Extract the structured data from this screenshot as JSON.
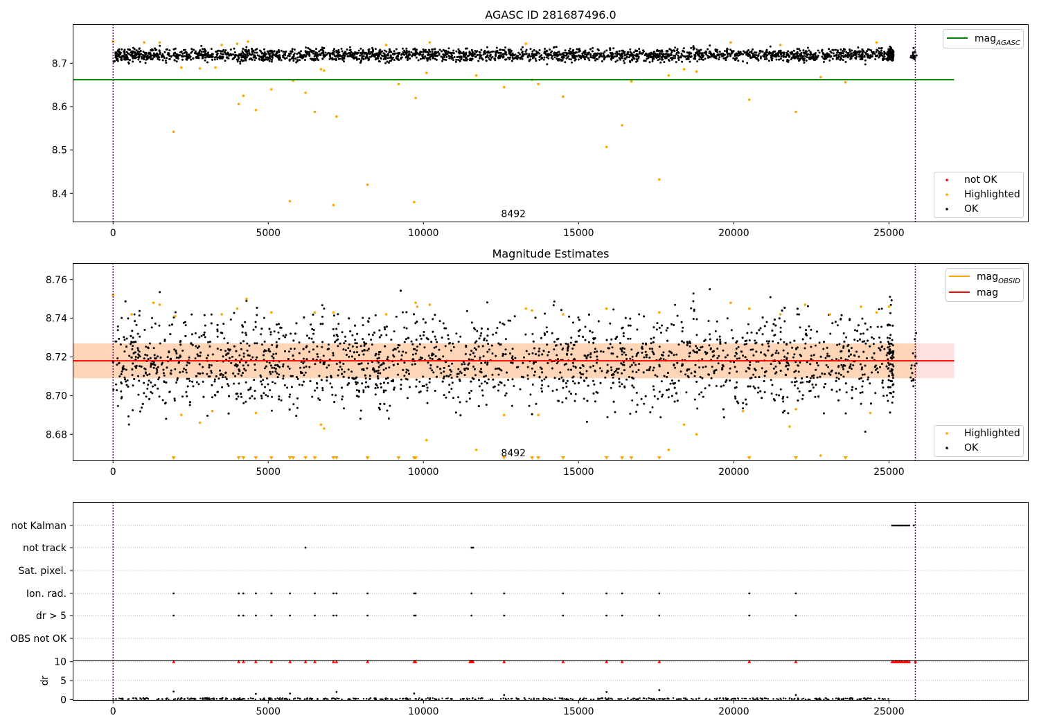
{
  "chart_data": [
    {
      "type": "scatter",
      "title": "AGASC ID 281687496.0",
      "xlabel": "",
      "ylabel": "",
      "xlim": [
        -1300,
        29500
      ],
      "ylim": [
        8.335,
        8.79
      ],
      "x_ticks": [
        0,
        5000,
        10000,
        15000,
        20000,
        25000
      ],
      "y_ticks": [
        8.4,
        8.5,
        8.6,
        8.7
      ],
      "vlines": [
        0,
        25850
      ],
      "hlines": [
        {
          "name": "mag_AGASC",
          "y": 8.662,
          "x_end": 27100,
          "color": "#008000"
        }
      ],
      "annotation": {
        "text": "8492",
        "x": 12900,
        "y": 8.353
      },
      "series": [
        {
          "name": "OK",
          "color": "#000000",
          "kind": "band",
          "x_range": [
            0,
            25900
          ],
          "y_center": 8.719,
          "y_spread": 0.013
        },
        {
          "name": "Highlighted",
          "color": "#ffa500",
          "kind": "points",
          "points": [
            [
              0,
              8.75
            ],
            [
              1000,
              8.748
            ],
            [
              1500,
              8.748
            ],
            [
              1950,
              8.542
            ],
            [
              2200,
              8.69
            ],
            [
              2800,
              8.688
            ],
            [
              3300,
              8.69
            ],
            [
              3500,
              8.742
            ],
            [
              4000,
              8.745
            ],
            [
              4050,
              8.606
            ],
            [
              4200,
              8.625
            ],
            [
              4350,
              8.75
            ],
            [
              4600,
              8.592
            ],
            [
              5100,
              8.64
            ],
            [
              5700,
              8.382
            ],
            [
              5800,
              8.66
            ],
            [
              6200,
              8.632
            ],
            [
              6500,
              8.588
            ],
            [
              6700,
              8.686
            ],
            [
              6800,
              8.683
            ],
            [
              7100,
              8.373
            ],
            [
              7200,
              8.577
            ],
            [
              8200,
              8.42
            ],
            [
              8800,
              8.742
            ],
            [
              9200,
              8.652
            ],
            [
              9700,
              8.38
            ],
            [
              9750,
              8.62
            ],
            [
              10100,
              8.678
            ],
            [
              10200,
              8.748
            ],
            [
              11700,
              8.672
            ],
            [
              12600,
              8.645
            ],
            [
              13300,
              8.745
            ],
            [
              13500,
              8.662
            ],
            [
              13700,
              8.652
            ],
            [
              14500,
              8.623
            ],
            [
              15900,
              8.507
            ],
            [
              16400,
              8.557
            ],
            [
              16700,
              8.658
            ],
            [
              17600,
              8.432
            ],
            [
              17900,
              8.672
            ],
            [
              18400,
              8.686
            ],
            [
              18800,
              8.681
            ],
            [
              19900,
              8.748
            ],
            [
              20500,
              8.616
            ],
            [
              21500,
              8.742
            ],
            [
              22000,
              8.588
            ],
            [
              22800,
              8.668
            ],
            [
              23600,
              8.656
            ],
            [
              24600,
              8.748
            ]
          ]
        },
        {
          "name": "not OK",
          "color": "#ff0000",
          "kind": "points",
          "points": []
        }
      ],
      "legends": [
        {
          "position": "top-right",
          "entries": [
            {
              "label_main": "mag",
              "label_sub": "AGASC",
              "color": "#008000",
              "kind": "line"
            }
          ]
        },
        {
          "position": "bottom-right",
          "entries": [
            {
              "label": "not OK",
              "color": "#ff0000",
              "kind": "dot"
            },
            {
              "label": "Highlighted",
              "color": "#ffa500",
              "kind": "dot"
            },
            {
              "label": "OK",
              "color": "#000000",
              "kind": "dot"
            }
          ]
        }
      ]
    },
    {
      "type": "scatter",
      "title": "Magnitude Estimates",
      "xlabel": "",
      "ylabel": "",
      "xlim": [
        -1300,
        29500
      ],
      "ylim": [
        8.6665,
        8.7685
      ],
      "x_ticks": [
        0,
        5000,
        10000,
        15000,
        20000,
        25000
      ],
      "y_ticks": [
        8.68,
        8.7,
        8.72,
        8.74,
        8.76
      ],
      "vlines": [
        0,
        25850
      ],
      "hlines": [
        {
          "name": "mag",
          "y": 8.718,
          "x_end": 27100,
          "color": "#ff0000"
        }
      ],
      "bands": [
        {
          "y0": 8.709,
          "y1": 8.727,
          "x_end": 27100,
          "color": "#ff0000",
          "opacity": 0.12
        },
        {
          "y0": 8.709,
          "y1": 8.727,
          "x_end": 25900,
          "color": "#ffa500",
          "opacity": 0.18
        }
      ],
      "annotation": {
        "text": "8492",
        "x": 12900,
        "y": 8.6705
      },
      "series": [
        {
          "name": "OK",
          "color": "#000000",
          "kind": "band",
          "x_range": [
            0,
            25900
          ],
          "y_center": 8.718,
          "y_spread": 0.022
        },
        {
          "name": "Highlighted",
          "color": "#ffa500",
          "kind": "points",
          "points": [
            [
              0,
              8.752
            ],
            [
              600,
              8.742
            ],
            [
              1300,
              8.748
            ],
            [
              1500,
              8.747
            ],
            [
              2000,
              8.741
            ],
            [
              2200,
              8.69
            ],
            [
              2800,
              8.686
            ],
            [
              3200,
              8.692
            ],
            [
              3500,
              8.742
            ],
            [
              4000,
              8.745
            ],
            [
              4300,
              8.75
            ],
            [
              4600,
              8.691
            ],
            [
              5100,
              8.743
            ],
            [
              6500,
              8.743
            ],
            [
              6700,
              8.685
            ],
            [
              6800,
              8.683
            ],
            [
              7100,
              8.743
            ],
            [
              8800,
              8.742
            ],
            [
              9750,
              8.748
            ],
            [
              9800,
              8.746
            ],
            [
              10100,
              8.677
            ],
            [
              10200,
              8.747
            ],
            [
              11700,
              8.672
            ],
            [
              12600,
              8.69
            ],
            [
              13300,
              8.745
            ],
            [
              13500,
              8.744
            ],
            [
              13700,
              8.69
            ],
            [
              14500,
              8.742
            ],
            [
              15900,
              8.745
            ],
            [
              17600,
              8.743
            ],
            [
              17900,
              8.672
            ],
            [
              18400,
              8.685
            ],
            [
              18800,
              8.68
            ],
            [
              19900,
              8.748
            ],
            [
              20300,
              8.692
            ],
            [
              20500,
              8.745
            ],
            [
              21500,
              8.742
            ],
            [
              21800,
              8.684
            ],
            [
              22000,
              8.693
            ],
            [
              22300,
              8.747
            ],
            [
              22800,
              8.669
            ],
            [
              23100,
              8.742
            ],
            [
              24100,
              8.746
            ],
            [
              24400,
              8.691
            ],
            [
              24600,
              8.743
            ],
            [
              25000,
              8.746
            ]
          ]
        },
        {
          "name": "Highlighted (off-scale)",
          "color": "#ffa500",
          "kind": "triangles",
          "x": [
            1950,
            4050,
            4200,
            4600,
            5100,
            5700,
            5800,
            6200,
            6500,
            7100,
            7200,
            8200,
            9200,
            9700,
            9750,
            12600,
            13500,
            13700,
            14500,
            15900,
            16400,
            16700,
            17600,
            20500,
            22000,
            23600
          ]
        }
      ],
      "legends": [
        {
          "position": "top-right",
          "entries": [
            {
              "label_main": "mag",
              "label_sub": "OBSID",
              "color": "#ffa500",
              "kind": "line"
            },
            {
              "label": "mag",
              "color": "#ff0000",
              "kind": "line"
            }
          ]
        },
        {
          "position": "bottom-right",
          "entries": [
            {
              "label": "Highlighted",
              "color": "#ffa500",
              "kind": "dot"
            },
            {
              "label": "OK",
              "color": "#000000",
              "kind": "dot"
            }
          ]
        }
      ]
    },
    {
      "type": "scatter",
      "title": "",
      "xlabel": "",
      "ylabel": "",
      "xlim": [
        -1300,
        29500
      ],
      "x_ticks": [
        0,
        5000,
        10000,
        15000,
        20000,
        25000
      ],
      "vlines": [
        0,
        25850
      ],
      "flag_rows": [
        "not Kalman",
        "not track",
        "Sat. pixel.",
        "Ion. rad.",
        "dr > 5",
        "OBS not OK"
      ],
      "flag_points": {
        "not Kalman": [
          25100,
          25150,
          25200,
          25250,
          25300,
          25350,
          25400,
          25450,
          25500,
          25550,
          25600,
          25650,
          25800
        ],
        "not track": [
          6200,
          11550,
          11600
        ],
        "Sat. pixel.": [],
        "Ion. rad.": [
          1950,
          4050,
          4200,
          4600,
          5100,
          5700,
          6500,
          7100,
          7200,
          8200,
          9700,
          9750,
          11550,
          12600,
          14500,
          15900,
          16400,
          17600,
          20500,
          22000
        ],
        "dr > 5": [
          1950,
          4050,
          4200,
          4600,
          5100,
          5700,
          6500,
          7100,
          7200,
          8200,
          9700,
          9750,
          11550,
          12600,
          14500,
          15900,
          16400,
          17600,
          20500,
          22000
        ],
        "OBS not OK": []
      },
      "dr_ylabel": "dr",
      "dr_ylim": [
        -0.3,
        10.5
      ],
      "dr_y_ticks": [
        0,
        5,
        10
      ],
      "dr_clipped": {
        "name": "dr > 10",
        "y": 10,
        "color": "#ff0000",
        "x": [
          1950,
          4050,
          4200,
          4600,
          5100,
          5700,
          6200,
          6500,
          7100,
          7200,
          8200,
          9700,
          9750,
          11500,
          11530,
          11560,
          11600,
          12600,
          14500,
          15900,
          16400,
          17600,
          20500,
          22000,
          25100,
          25150,
          25200,
          25250,
          25300,
          25350,
          25400,
          25450,
          25500,
          25550,
          25600,
          25650,
          25850
        ]
      },
      "dr_outliers": [
        [
          1950,
          2.1
        ],
        [
          4600,
          1.5
        ],
        [
          5700,
          1.6
        ],
        [
          7200,
          2.0
        ],
        [
          9700,
          1.6
        ],
        [
          12600,
          1.2
        ],
        [
          15900,
          2.0
        ],
        [
          17600,
          2.5
        ],
        [
          22000,
          1.2
        ]
      ],
      "dr_baseline": {
        "x_range": [
          0,
          25100
        ],
        "y": 0.2
      }
    }
  ]
}
